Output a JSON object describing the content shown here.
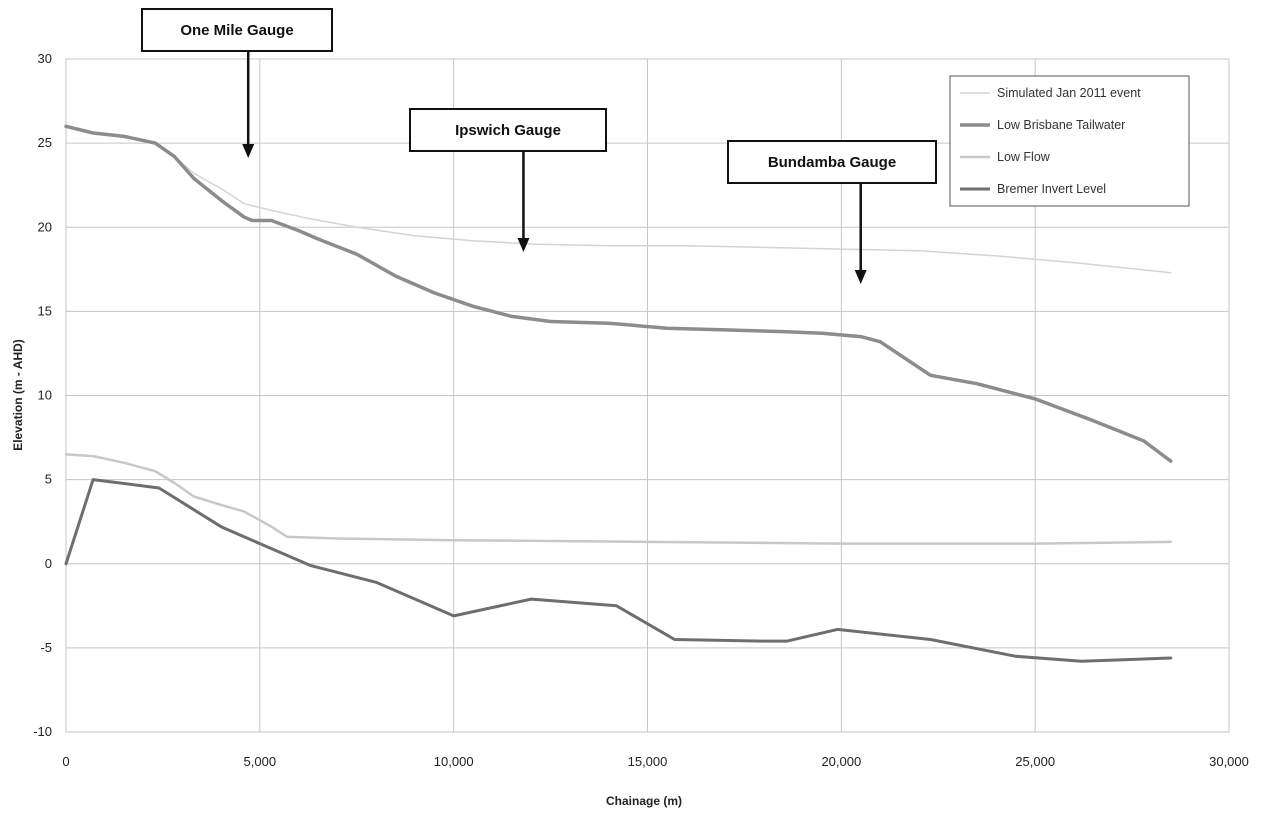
{
  "chart_data": {
    "type": "line",
    "title": "",
    "xlabel": "Chainage (m)",
    "ylabel": "Elevation (m - AHD)",
    "xlim": [
      0,
      30000
    ],
    "ylim": [
      -10,
      30
    ],
    "xticks": [
      0,
      5000,
      10000,
      15000,
      20000,
      25000,
      30000
    ],
    "xtick_labels": [
      "0",
      "5,000",
      "10,000",
      "15,000",
      "20,000",
      "25,000",
      "30,000"
    ],
    "yticks": [
      -10,
      -5,
      0,
      5,
      10,
      15,
      20,
      25,
      30
    ],
    "ytick_labels": [
      "-10",
      "-5",
      "0",
      "5",
      "10",
      "15",
      "20",
      "25",
      "30"
    ],
    "grid": true,
    "legend_position": "top-right",
    "series": [
      {
        "name": "Simulated Jan 2011 event",
        "color": "#d4d4d4",
        "width": 1.5,
        "x": [
          0,
          700,
          1500,
          2300,
          2800,
          3300,
          4000,
          4600,
          5300,
          6300,
          7500,
          9000,
          10500,
          12000,
          14000,
          16000,
          18000,
          20000,
          22000,
          24000,
          26000,
          28500
        ],
        "y": [
          26,
          25.6,
          25.4,
          25,
          24.2,
          23.2,
          22.3,
          21.4,
          21,
          20.5,
          20,
          19.5,
          19.2,
          19,
          18.9,
          18.9,
          18.8,
          18.7,
          18.6,
          18.3,
          17.9,
          17.3
        ]
      },
      {
        "name": "Low Brisbane Tailwater",
        "color": "#8c8c8c",
        "width": 3.5,
        "x": [
          0,
          700,
          1500,
          2300,
          2800,
          3300,
          4000,
          4600,
          4800,
          5300,
          6000,
          6500,
          7500,
          8500,
          9500,
          10500,
          11500,
          12500,
          14000,
          15500,
          17000,
          18500,
          19500,
          20500,
          21000,
          22300,
          23500,
          25000,
          26500,
          27800,
          28500
        ],
        "y": [
          26,
          25.6,
          25.4,
          25,
          24.2,
          22.9,
          21.6,
          20.6,
          20.4,
          20.4,
          19.8,
          19.3,
          18.4,
          17.1,
          16.1,
          15.3,
          14.7,
          14.4,
          14.3,
          14,
          13.9,
          13.8,
          13.7,
          13.5,
          13.2,
          11.2,
          10.7,
          9.8,
          8.5,
          7.3,
          6.1
        ]
      },
      {
        "name": "Low Flow",
        "color": "#c8c8c8",
        "width": 2.5,
        "x": [
          0,
          700,
          1500,
          2300,
          2800,
          3300,
          4000,
          4600,
          5300,
          5700,
          7000,
          10000,
          15000,
          20000,
          25000,
          28500
        ],
        "y": [
          6.5,
          6.4,
          6,
          5.5,
          4.8,
          4,
          3.5,
          3.1,
          2.2,
          1.6,
          1.5,
          1.4,
          1.3,
          1.2,
          1.2,
          1.3
        ]
      },
      {
        "name": "Bremer Invert Level",
        "color": "#6e6e6e",
        "width": 3,
        "x": [
          0,
          700,
          2400,
          4000,
          5000,
          6300,
          8000,
          10000,
          12000,
          14200,
          15700,
          18000,
          18600,
          19900,
          22300,
          24500,
          26200,
          28500
        ],
        "y": [
          0,
          5,
          4.5,
          2.2,
          1.2,
          -0.1,
          -1.1,
          -3.1,
          -2.1,
          -2.5,
          -4.5,
          -4.6,
          -4.6,
          -3.9,
          -4.5,
          -5.5,
          -5.8,
          -5.6
        ]
      }
    ],
    "annotations": [
      {
        "label": "One Mile Gauge",
        "x": 4700
      },
      {
        "label": "Ipswich Gauge",
        "x": 11800
      },
      {
        "label": "Bundamba Gauge",
        "x": 20500
      }
    ]
  }
}
